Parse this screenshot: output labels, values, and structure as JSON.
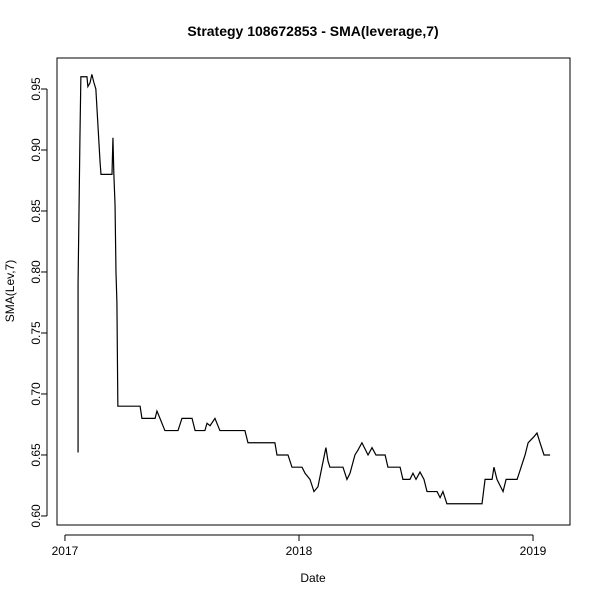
{
  "chart_data": {
    "type": "line",
    "title": "Strategy 108672853 - SMA(leverage,7)",
    "x_label": "Date",
    "y_label": "SMA(Lev,7)",
    "x": [
      2017.056,
      2017.056,
      2017.064,
      2017.068,
      2017.094,
      2017.098,
      2017.107,
      2017.115,
      2017.124,
      2017.132,
      2017.141,
      2017.15,
      2017.154,
      2017.201,
      2017.205,
      2017.209,
      2017.214,
      2017.218,
      2017.222,
      2017.226,
      2017.321,
      2017.329,
      2017.385,
      2017.393,
      2017.406,
      2017.427,
      2017.483,
      2017.5,
      2017.543,
      2017.556,
      2017.598,
      2017.607,
      2017.62,
      2017.641,
      2017.662,
      2017.769,
      2017.782,
      2017.897,
      2017.906,
      2017.953,
      2017.97,
      2018.013,
      2018.026,
      2018.047,
      2018.064,
      2018.081,
      2018.098,
      2018.115,
      2018.124,
      2018.132,
      2018.188,
      2018.205,
      2018.218,
      2018.239,
      2018.252,
      2018.269,
      2018.282,
      2018.295,
      2018.312,
      2018.329,
      2018.368,
      2018.38,
      2018.432,
      2018.444,
      2018.474,
      2018.487,
      2018.5,
      2018.517,
      2018.534,
      2018.547,
      2018.59,
      2018.603,
      2018.615,
      2018.632,
      2018.782,
      2018.795,
      2018.825,
      2018.833,
      2018.846,
      2018.859,
      2018.872,
      2018.885,
      2018.932,
      2018.949,
      2018.966,
      2018.979,
      2019.004,
      2019.017,
      2019.03,
      2019.047,
      2019.073
    ],
    "series": [
      {
        "name": "SMA(Lev,7)",
        "color": "#000000",
        "values": [
          0.652,
          0.79,
          0.91,
          0.96,
          0.96,
          0.952,
          0.955,
          0.962,
          0.955,
          0.95,
          0.92,
          0.89,
          0.88,
          0.88,
          0.91,
          0.88,
          0.855,
          0.8,
          0.775,
          0.69,
          0.69,
          0.68,
          0.68,
          0.686,
          0.68,
          0.67,
          0.67,
          0.68,
          0.68,
          0.67,
          0.67,
          0.676,
          0.674,
          0.68,
          0.67,
          0.67,
          0.66,
          0.66,
          0.65,
          0.65,
          0.64,
          0.64,
          0.635,
          0.63,
          0.62,
          0.624,
          0.64,
          0.656,
          0.645,
          0.64,
          0.64,
          0.63,
          0.635,
          0.65,
          0.654,
          0.66,
          0.655,
          0.65,
          0.656,
          0.65,
          0.65,
          0.64,
          0.64,
          0.63,
          0.63,
          0.635,
          0.63,
          0.636,
          0.63,
          0.62,
          0.62,
          0.615,
          0.62,
          0.61,
          0.61,
          0.63,
          0.63,
          0.64,
          0.63,
          0.625,
          0.62,
          0.63,
          0.63,
          0.64,
          0.65,
          0.66,
          0.665,
          0.668,
          0.66,
          0.65,
          0.65
        ]
      }
    ],
    "xlim": [
      2016.966,
      2019.158
    ],
    "xticks": [
      2017,
      2018,
      2019
    ],
    "ylim": [
      0.5926,
      0.9754
    ],
    "yticks": [
      {
        "value": 0.6,
        "label": "0.60"
      },
      {
        "value": 0.65,
        "label": "0.65"
      },
      {
        "value": 0.7,
        "label": "0.70"
      },
      {
        "value": 0.75,
        "label": "0.75"
      },
      {
        "value": 0.8,
        "label": "0.80"
      },
      {
        "value": 0.85,
        "label": "0.85"
      },
      {
        "value": 0.9,
        "label": "0.90"
      },
      {
        "value": 0.95,
        "label": "0.95"
      }
    ]
  }
}
